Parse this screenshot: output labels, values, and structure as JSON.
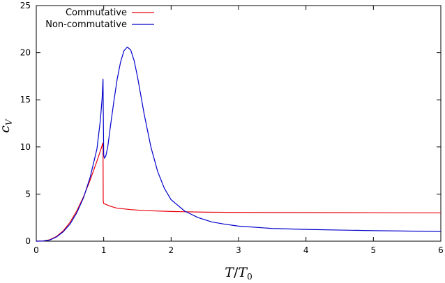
{
  "chart_data": {
    "type": "line",
    "xlabel_main": "T",
    "xlabel_slash": "/",
    "xlabel_denom": "T",
    "xlabel_sub": "0",
    "ylabel_main": "c",
    "ylabel_sub": "V",
    "xlim": [
      0,
      6
    ],
    "ylim": [
      0,
      25
    ],
    "xticks": [
      0,
      1,
      2,
      3,
      4,
      5,
      6
    ],
    "yticks": [
      0,
      5,
      10,
      15,
      20,
      25
    ],
    "grid": false,
    "legend_position": "top-left",
    "series": [
      {
        "name": "Commutative",
        "color": "#e8000b",
        "points": [
          [
            0,
            0
          ],
          [
            0.1,
            0.02
          ],
          [
            0.2,
            0.15
          ],
          [
            0.3,
            0.5
          ],
          [
            0.4,
            1.1
          ],
          [
            0.5,
            2.0
          ],
          [
            0.6,
            3.2
          ],
          [
            0.7,
            4.7
          ],
          [
            0.8,
            6.5
          ],
          [
            0.9,
            8.5
          ],
          [
            0.97,
            10.0
          ],
          [
            0.985,
            10.4
          ],
          [
            0.99,
            10.3
          ],
          [
            0.993,
            4.3
          ],
          [
            1.0,
            4.0
          ],
          [
            1.1,
            3.7
          ],
          [
            1.2,
            3.5
          ],
          [
            1.4,
            3.35
          ],
          [
            1.6,
            3.25
          ],
          [
            2.0,
            3.15
          ],
          [
            2.5,
            3.08
          ],
          [
            3.0,
            3.05
          ],
          [
            4.0,
            3.03
          ],
          [
            5.0,
            3.02
          ],
          [
            6.0,
            3.0
          ]
        ]
      },
      {
        "name": "Non-commutative",
        "color": "#0000cc",
        "points": [
          [
            0,
            0
          ],
          [
            0.1,
            0.02
          ],
          [
            0.2,
            0.12
          ],
          [
            0.3,
            0.45
          ],
          [
            0.4,
            1.0
          ],
          [
            0.5,
            1.8
          ],
          [
            0.6,
            3.0
          ],
          [
            0.7,
            4.6
          ],
          [
            0.8,
            6.8
          ],
          [
            0.9,
            9.8
          ],
          [
            0.95,
            12.8
          ],
          [
            0.975,
            15.0
          ],
          [
            0.99,
            17.2
          ],
          [
            0.995,
            13.0
          ],
          [
            1.0,
            9.2
          ],
          [
            1.01,
            8.8
          ],
          [
            1.03,
            9.0
          ],
          [
            1.06,
            10.0
          ],
          [
            1.1,
            12.2
          ],
          [
            1.15,
            14.8
          ],
          [
            1.2,
            17.2
          ],
          [
            1.25,
            19.0
          ],
          [
            1.3,
            20.2
          ],
          [
            1.35,
            20.6
          ],
          [
            1.4,
            20.3
          ],
          [
            1.45,
            19.2
          ],
          [
            1.5,
            17.5
          ],
          [
            1.6,
            13.5
          ],
          [
            1.7,
            10.0
          ],
          [
            1.8,
            7.4
          ],
          [
            1.9,
            5.6
          ],
          [
            2.0,
            4.4
          ],
          [
            2.2,
            3.2
          ],
          [
            2.4,
            2.5
          ],
          [
            2.6,
            2.05
          ],
          [
            2.8,
            1.8
          ],
          [
            3.0,
            1.6
          ],
          [
            3.5,
            1.35
          ],
          [
            4.0,
            1.25
          ],
          [
            4.5,
            1.18
          ],
          [
            5.0,
            1.12
          ],
          [
            5.5,
            1.07
          ],
          [
            6.0,
            1.02
          ]
        ]
      }
    ]
  }
}
